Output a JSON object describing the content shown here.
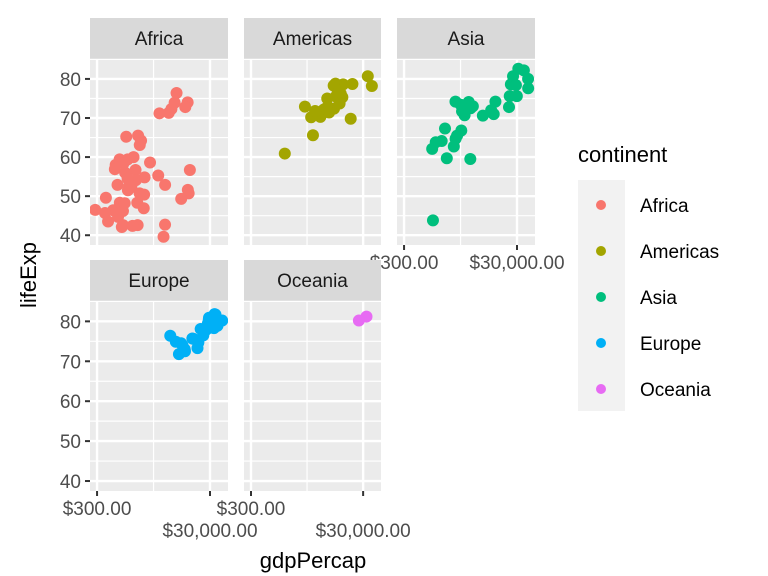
{
  "chart_data": {
    "type": "scatter",
    "xlabel": "gdpPercap",
    "ylabel": "lifeExp",
    "x_scale": "log10",
    "x_ticks": [
      300,
      30000
    ],
    "x_tick_labels": [
      "$300.00",
      "$30,000.00"
    ],
    "y_ticks": [
      40,
      50,
      60,
      70,
      80
    ],
    "y_tick_labels": [
      "40",
      "50",
      "60",
      "70",
      "80"
    ],
    "ylim": [
      37.5,
      85.1
    ],
    "xlim": [
      225,
      62500
    ],
    "grid": true,
    "legend": {
      "title": "continent",
      "position": "right",
      "entries": [
        "Africa",
        "Americas",
        "Asia",
        "Europe",
        "Oceania"
      ]
    },
    "colors": {
      "Africa": "#F8766D",
      "Americas": "#A3A500",
      "Asia": "#00BF7D",
      "Europe": "#00B0F6",
      "Oceania": "#E76BF3"
    },
    "facets": [
      {
        "name": "Africa",
        "points": [
          [
            6223,
            72.3
          ],
          [
            4797,
            42.7
          ],
          [
            1441,
            56.7
          ],
          [
            12570,
            50.7
          ],
          [
            1217,
            52.3
          ],
          [
            430,
            49.6
          ],
          [
            2042,
            50.4
          ],
          [
            706,
            44.7
          ],
          [
            1704,
            50.7
          ],
          [
            986,
            65.2
          ],
          [
            278,
            46.5
          ],
          [
            3633,
            55.3
          ],
          [
            1545,
            48.3
          ],
          [
            2082,
            54.8
          ],
          [
            5581,
            71.3
          ],
          [
            12154,
            51.6
          ],
          [
            641,
            58.0
          ],
          [
            691,
            52.9
          ],
          [
            13206,
            56.7
          ],
          [
            753,
            59.4
          ],
          [
            1328,
            60.0
          ],
          [
            943,
            56.0
          ],
          [
            579,
            46.4
          ],
          [
            1463,
            54.1
          ],
          [
            1569,
            42.6
          ],
          [
            415,
            45.7
          ],
          [
            12057,
            74.0
          ],
          [
            1045,
            59.4
          ],
          [
            759,
            48.3
          ],
          [
            1043,
            54.5
          ],
          [
            1803,
            64.2
          ],
          [
            10957,
            72.8
          ],
          [
            3820,
            71.2
          ],
          [
            824,
            42.1
          ],
          [
            4811,
            52.9
          ],
          [
            620,
            56.9
          ],
          [
            2014,
            46.9
          ],
          [
            7670,
            76.4
          ],
          [
            863,
            46.2
          ],
          [
            1598,
            65.5
          ],
          [
            1712,
            63.1
          ],
          [
            863,
            42.6
          ],
          [
            926,
            48.2
          ],
          [
            9270,
            49.3
          ],
          [
            2602,
            58.6
          ],
          [
            4513,
            39.6
          ],
          [
            1107,
            52.5
          ],
          [
            883,
            58.4
          ],
          [
            7093,
            73.9
          ],
          [
            1056,
            51.5
          ],
          [
            1271,
            42.4
          ],
          [
            470,
            43.5
          ]
        ]
      },
      {
        "name": "Americas",
        "points": [
          [
            12779,
            75.3
          ],
          [
            3822,
            65.6
          ],
          [
            9066,
            72.4
          ],
          [
            36319,
            80.7
          ],
          [
            13172,
            78.6
          ],
          [
            7007,
            72.9
          ],
          [
            9645,
            78.8
          ],
          [
            8948,
            78.3
          ],
          [
            6025,
            72.2
          ],
          [
            6873,
            75.0
          ],
          [
            5728,
            71.9
          ],
          [
            5186,
            70.3
          ],
          [
            1202,
            60.9
          ],
          [
            3548,
            70.2
          ],
          [
            7321,
            72.6
          ],
          [
            11978,
            76.2
          ],
          [
            2749,
            72.9
          ],
          [
            9809,
            75.5
          ],
          [
            4173,
            71.8
          ],
          [
            7409,
            71.4
          ],
          [
            19329,
            78.7
          ],
          [
            18009,
            69.8
          ],
          [
            42952,
            78.2
          ],
          [
            10611,
            76.4
          ],
          [
            11416,
            73.7
          ]
        ]
      },
      {
        "name": "Asia",
        "points": [
          [
            975,
            43.8
          ],
          [
            29796,
            75.6
          ],
          [
            1391,
            64.1
          ],
          [
            1714,
            59.7
          ],
          [
            4959,
            73.0
          ],
          [
            39725,
            82.2
          ],
          [
            2452,
            64.7
          ],
          [
            3541,
            70.7
          ],
          [
            11606,
            71.0
          ],
          [
            4471,
            59.5
          ],
          [
            25523,
            80.7
          ],
          [
            31656,
            82.6
          ],
          [
            4519,
            72.5
          ],
          [
            1593,
            67.3
          ],
          [
            23348,
            78.6
          ],
          [
            47307,
            77.6
          ],
          [
            10461,
            72.0
          ],
          [
            12452,
            74.2
          ],
          [
            3096,
            66.8
          ],
          [
            944,
            62.1
          ],
          [
            1091,
            63.8
          ],
          [
            22316,
            75.6
          ],
          [
            2606,
            65.5
          ],
          [
            3190,
            71.7
          ],
          [
            21655,
            72.8
          ],
          [
            47143,
            80.0
          ],
          [
            3970,
            72.4
          ],
          [
            4185,
            74.1
          ],
          [
            28718,
            78.4
          ],
          [
            7458,
            70.6
          ],
          [
            2442,
            74.2
          ],
          [
            3025,
            73.4
          ],
          [
            2281,
            62.7
          ]
        ]
      },
      {
        "name": "Europe",
        "points": [
          [
            5937,
            76.4
          ],
          [
            36126,
            79.8
          ],
          [
            33693,
            79.4
          ],
          [
            7446,
            74.9
          ],
          [
            10681,
            73.0
          ],
          [
            14619,
            75.7
          ],
          [
            22833,
            76.5
          ],
          [
            35278,
            78.3
          ],
          [
            33207,
            79.3
          ],
          [
            30470,
            80.7
          ],
          [
            32170,
            79.4
          ],
          [
            27538,
            79.5
          ],
          [
            18009,
            73.3
          ],
          [
            36181,
            81.8
          ],
          [
            40676,
            78.9
          ],
          [
            28570,
            80.5
          ],
          [
            9254,
            74.5
          ],
          [
            36798,
            79.8
          ],
          [
            49357,
            80.2
          ],
          [
            15390,
            75.6
          ],
          [
            20510,
            78.1
          ],
          [
            10808,
            72.5
          ],
          [
            9787,
            74.0
          ],
          [
            18678,
            74.7
          ],
          [
            25768,
            77.9
          ],
          [
            28821,
            80.9
          ],
          [
            33860,
            80.9
          ],
          [
            37506,
            81.7
          ],
          [
            8458,
            71.8
          ],
          [
            33203,
            79.4
          ]
        ]
      },
      {
        "name": "Oceania",
        "points": [
          [
            34435,
            81.2
          ],
          [
            25185,
            80.2
          ]
        ]
      }
    ]
  }
}
